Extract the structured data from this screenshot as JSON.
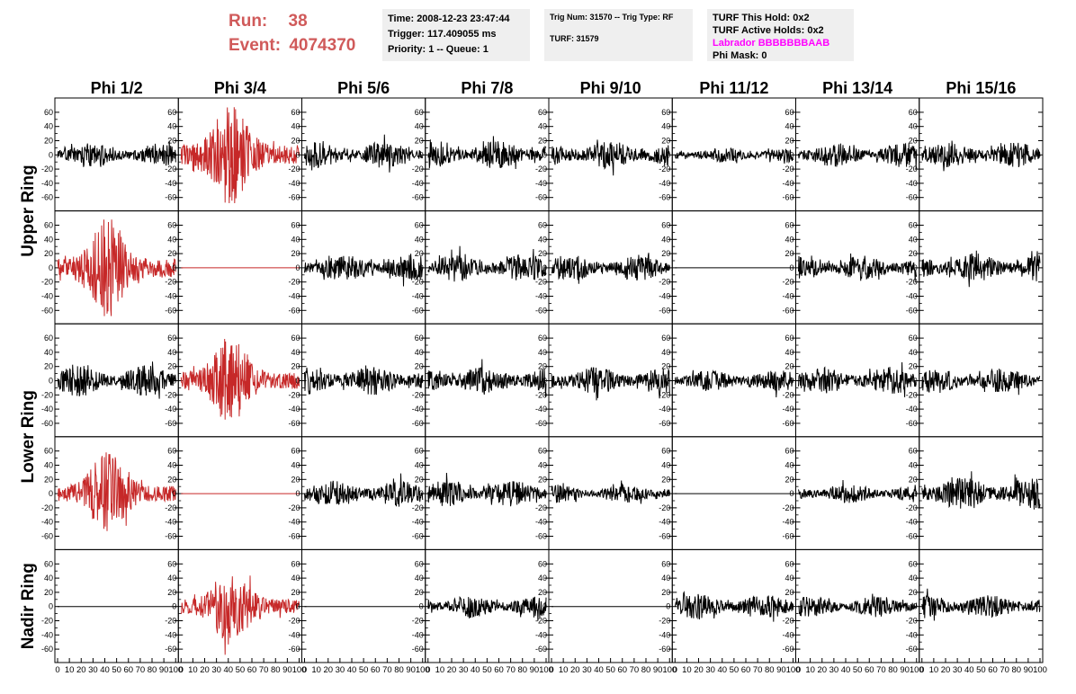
{
  "header": {
    "run_label": "Run:",
    "run_value": "38",
    "event_label": "Event:",
    "event_value": "4074370",
    "time": "Time: 2008-12-23 23:47:44",
    "trigger": "Trigger: 117.409055 ms",
    "priority": "Priority: 1 -- Queue: 1",
    "trig_num": "Trig Num: 31570 -- Trig Type: RF",
    "turf": "TURF: 31579",
    "turf_this_hold": "TURF This Hold: 0x2",
    "turf_active_holds": "TURF Active Holds: 0x2",
    "labrador": "Labrador BBBBBBBAAB",
    "phi_mask": "Phi Mask: 0"
  },
  "colors": {
    "triggered": "#c62828",
    "normal": "#000000",
    "header_red": "#d05a5a",
    "labrador": "#ff00ff"
  },
  "chart_data": {
    "type": "line",
    "columns": [
      "Phi 1/2",
      "Phi 3/4",
      "Phi 5/6",
      "Phi 7/8",
      "Phi 9/10",
      "Phi 11/12",
      "Phi 13/14",
      "Phi 15/16"
    ],
    "row_groups": [
      {
        "label": "Upper Ring",
        "rows": [
          0,
          1
        ]
      },
      {
        "label": "Lower Ring",
        "rows": [
          2,
          3
        ]
      },
      {
        "label": "Nadir Ring",
        "rows": [
          4
        ]
      }
    ],
    "ylim": [
      -70,
      70
    ],
    "y_ticks": [
      -60,
      -40,
      -20,
      0,
      20,
      40,
      60
    ],
    "xlim": [
      0,
      100
    ],
    "x_ticks": [
      0,
      10,
      20,
      30,
      40,
      50,
      60,
      70,
      80,
      90,
      100
    ],
    "cells": [
      [
        {
          "kind": "noise",
          "amp": 15,
          "color": "normal",
          "seed": 11
        },
        {
          "kind": "pulse",
          "amp": 62,
          "color": "triggered",
          "seed": 12
        },
        {
          "kind": "noise",
          "amp": 17,
          "color": "normal",
          "seed": 13
        },
        {
          "kind": "noise",
          "amp": 18,
          "color": "normal",
          "seed": 14
        },
        {
          "kind": "noise",
          "amp": 18,
          "color": "normal",
          "seed": 15
        },
        {
          "kind": "noise",
          "amp": 10,
          "color": "normal",
          "seed": 16
        },
        {
          "kind": "noise",
          "amp": 16,
          "color": "normal",
          "seed": 17
        },
        {
          "kind": "noise",
          "amp": 16,
          "color": "normal",
          "seed": 18
        }
      ],
      [
        {
          "kind": "pulse",
          "amp": 60,
          "color": "triggered",
          "seed": 21
        },
        {
          "kind": "flat",
          "amp": 0,
          "color": "triggered",
          "seed": 22
        },
        {
          "kind": "noise",
          "amp": 17,
          "color": "normal",
          "seed": 23
        },
        {
          "kind": "noise",
          "amp": 18,
          "color": "normal",
          "seed": 24
        },
        {
          "kind": "noise",
          "amp": 17,
          "color": "normal",
          "seed": 25
        },
        {
          "kind": "flat",
          "amp": 0,
          "color": "normal",
          "seed": 26
        },
        {
          "kind": "noise",
          "amp": 16,
          "color": "normal",
          "seed": 27
        },
        {
          "kind": "noise",
          "amp": 19,
          "color": "normal",
          "seed": 28
        }
      ],
      [
        {
          "kind": "noise",
          "amp": 20,
          "color": "normal",
          "seed": 31
        },
        {
          "kind": "pulse",
          "amp": 52,
          "color": "triggered",
          "seed": 32
        },
        {
          "kind": "noise",
          "amp": 19,
          "color": "normal",
          "seed": 33
        },
        {
          "kind": "noise",
          "amp": 18,
          "color": "normal",
          "seed": 34
        },
        {
          "kind": "noise",
          "amp": 18,
          "color": "normal",
          "seed": 35
        },
        {
          "kind": "noise",
          "amp": 14,
          "color": "normal",
          "seed": 36
        },
        {
          "kind": "noise",
          "amp": 18,
          "color": "normal",
          "seed": 37
        },
        {
          "kind": "noise",
          "amp": 16,
          "color": "normal",
          "seed": 38
        }
      ],
      [
        {
          "kind": "pulse",
          "amp": 48,
          "color": "triggered",
          "seed": 41
        },
        {
          "kind": "flat",
          "amp": 0,
          "color": "triggered",
          "seed": 42
        },
        {
          "kind": "noise",
          "amp": 17,
          "color": "normal",
          "seed": 43
        },
        {
          "kind": "noise",
          "amp": 17,
          "color": "normal",
          "seed": 44
        },
        {
          "kind": "noise",
          "amp": 12,
          "color": "normal",
          "seed": 45
        },
        {
          "kind": "flat",
          "amp": 0,
          "color": "normal",
          "seed": 46
        },
        {
          "kind": "noise",
          "amp": 12,
          "color": "normal",
          "seed": 47
        },
        {
          "kind": "noise",
          "amp": 22,
          "color": "normal",
          "seed": 48
        }
      ],
      [
        {
          "kind": "flat",
          "amp": 0,
          "color": "normal",
          "seed": 51
        },
        {
          "kind": "pulse",
          "amp": 45,
          "color": "triggered",
          "seed": 52
        },
        {
          "kind": "flat",
          "amp": 0,
          "color": "normal",
          "seed": 53
        },
        {
          "kind": "noise",
          "amp": 15,
          "color": "normal",
          "seed": 54
        },
        {
          "kind": "flat",
          "amp": 0,
          "color": "normal",
          "seed": 55
        },
        {
          "kind": "noise",
          "amp": 16,
          "color": "normal",
          "seed": 56
        },
        {
          "kind": "noise",
          "amp": 14,
          "color": "normal",
          "seed": 57
        },
        {
          "kind": "noise",
          "amp": 15,
          "color": "normal",
          "seed": 58
        }
      ]
    ]
  }
}
